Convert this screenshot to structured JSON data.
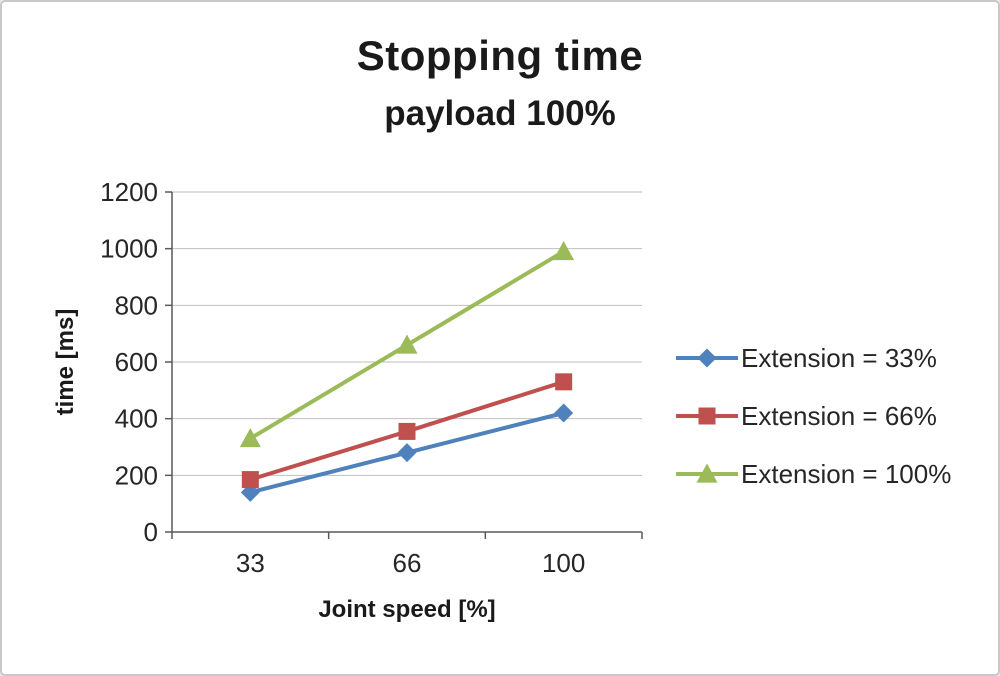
{
  "chart_data": {
    "type": "line",
    "title": "Stopping time",
    "subtitle": "payload 100%",
    "xlabel": "Joint speed [%]",
    "ylabel": "time [ms]",
    "categories": [
      "33",
      "66",
      "100"
    ],
    "series": [
      {
        "name": "Extension = 33%",
        "values": [
          140,
          280,
          420
        ],
        "color": "#4F81BD",
        "marker": "diamond"
      },
      {
        "name": "Extension = 66%",
        "values": [
          185,
          355,
          530
        ],
        "color": "#C0504D",
        "marker": "square"
      },
      {
        "name": "Extension = 100%",
        "values": [
          330,
          660,
          990
        ],
        "color": "#9BBB59",
        "marker": "triangle"
      }
    ],
    "ylim": [
      0,
      1200
    ],
    "ytick_step": 200,
    "grid": true,
    "legend_position": "right",
    "colors": {
      "gridline": "#bfbfbf",
      "axis": "#595959",
      "text": "#262626"
    }
  }
}
